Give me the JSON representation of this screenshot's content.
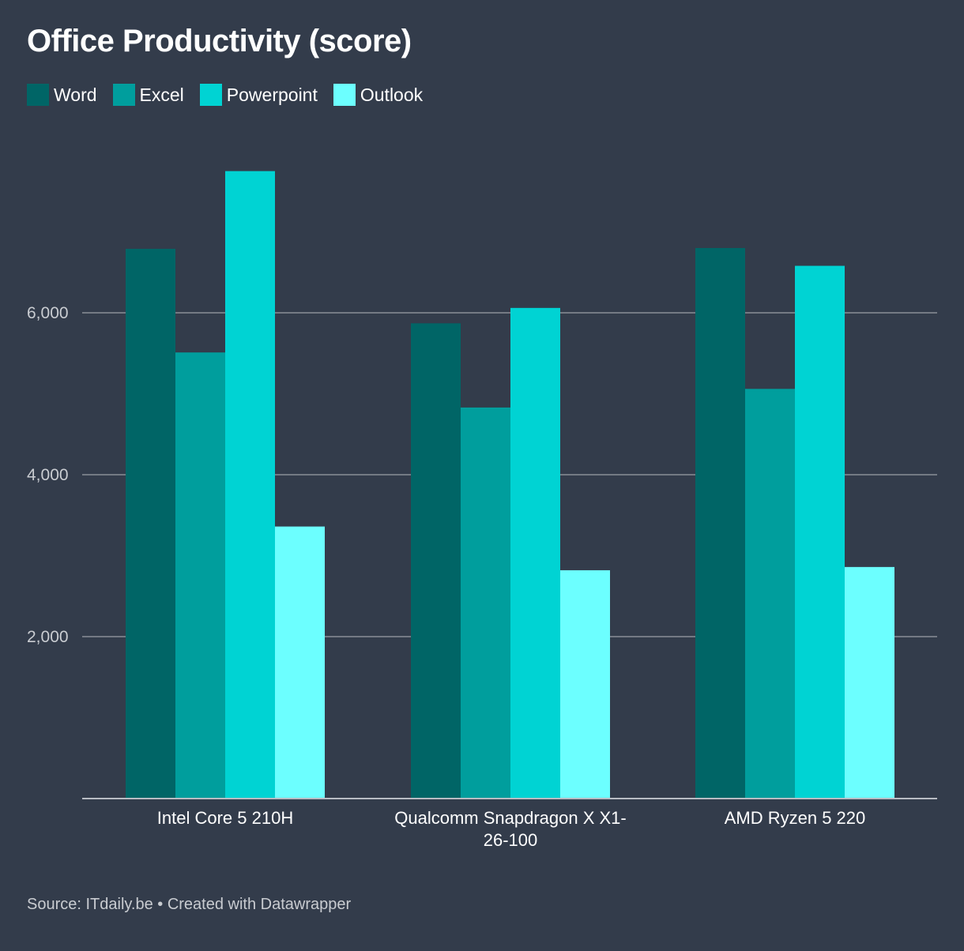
{
  "chart_data": {
    "type": "bar",
    "title": "Office Productivity (score)",
    "categories": [
      [
        "Intel Core 5 210H"
      ],
      [
        "Qualcomm Snapdragon X X1-",
        "26-100"
      ],
      [
        "AMD Ryzen 5 220"
      ]
    ],
    "series": [
      {
        "name": "Word",
        "color": "#006566",
        "values": [
          6790,
          5870,
          6800
        ]
      },
      {
        "name": "Excel",
        "color": "#009e9d",
        "values": [
          5510,
          4830,
          5060
        ]
      },
      {
        "name": "Powerpoint",
        "color": "#00d3d3",
        "values": [
          7750,
          6060,
          6580
        ]
      },
      {
        "name": "Outlook",
        "color": "#6cffff",
        "values": [
          3360,
          2820,
          2860
        ]
      }
    ],
    "yticks": [
      "2,000",
      "4,000",
      "6,000"
    ],
    "ytick_values": [
      2000,
      4000,
      6000
    ],
    "ylim": [
      0,
      8000
    ],
    "xlabel": "",
    "ylabel": "",
    "grid": true,
    "legend_position": "top-left"
  },
  "footer": {
    "source": "Source: ITdaily.be • Created with Datawrapper"
  }
}
